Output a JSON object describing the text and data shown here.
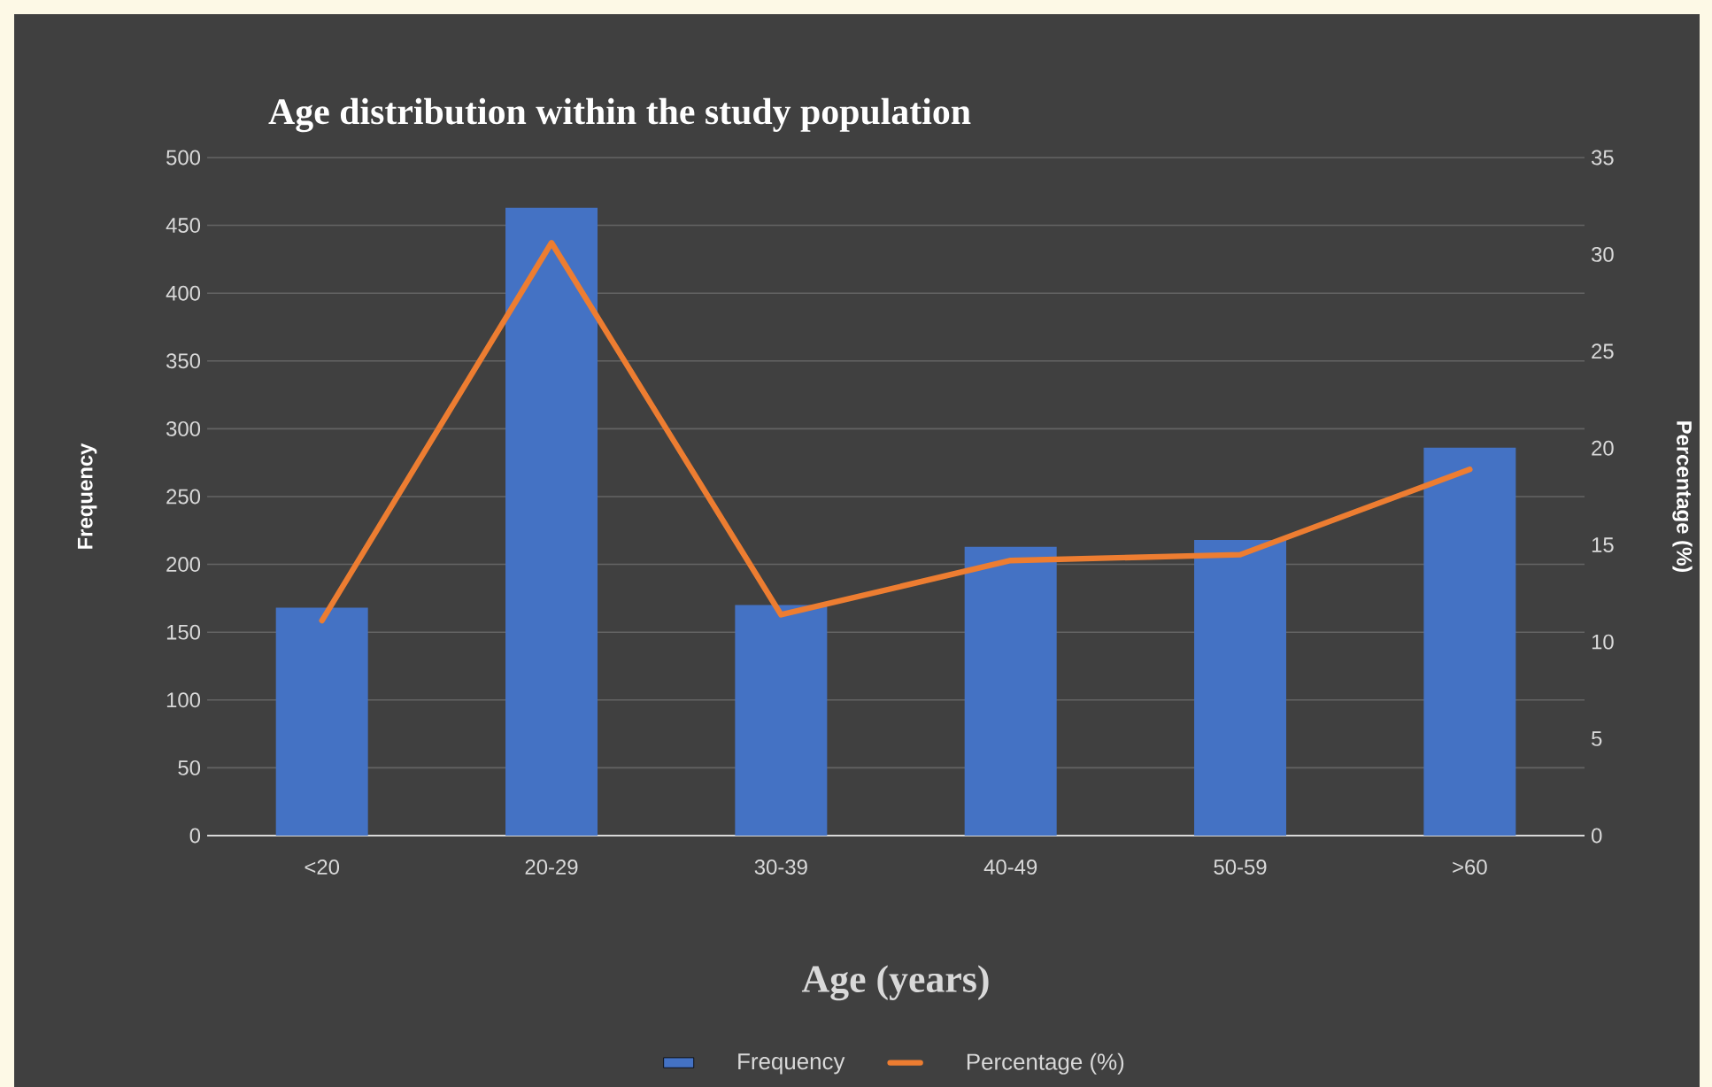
{
  "chart_data": {
    "type": "bar",
    "title": "Age distribution within the study population",
    "xlabel": "Age (years)",
    "ylabel": "Frequency",
    "y2label": "Percentage (%)",
    "categories": [
      "<20",
      "20-29",
      "30-39",
      "40-49",
      "50-59",
      ">60"
    ],
    "series": [
      {
        "name": "Frequency",
        "color": "#4472c4",
        "values": [
          168,
          463,
          170,
          213,
          218,
          286
        ]
      },
      {
        "name": "Percentage (%)",
        "type": "line",
        "axis": "y2",
        "color": "#ed7d31",
        "values": [
          11.1,
          30.6,
          11.4,
          14.2,
          14.5,
          18.9
        ]
      }
    ],
    "ylim": [
      0,
      500
    ],
    "yticks": [
      0,
      50,
      100,
      150,
      200,
      250,
      300,
      350,
      400,
      450,
      500
    ],
    "y2lim": [
      0,
      35
    ],
    "y2ticks": [
      0,
      5,
      10,
      15,
      20,
      25,
      30,
      35
    ],
    "grid": "y",
    "legend": "bottom"
  }
}
